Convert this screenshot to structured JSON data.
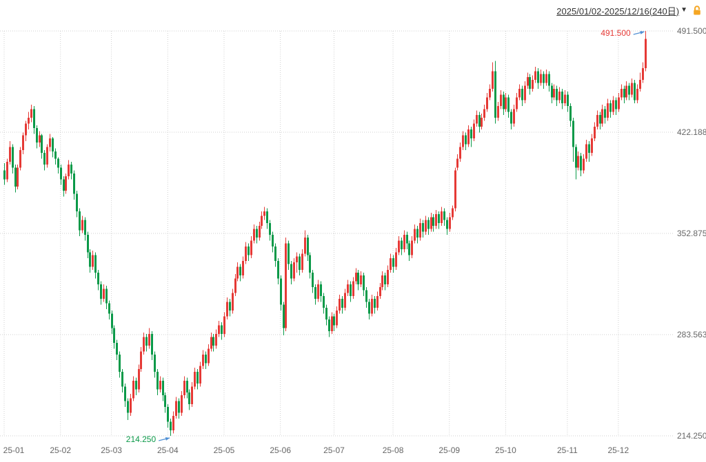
{
  "header": {
    "range_label": "2025/01/02-2025/12/16(240日)",
    "dropdown_icon": "▼"
  },
  "colors": {
    "up": "#e53935",
    "down": "#0a9948",
    "grid": "#cfcfcf",
    "axis_text": "#666666",
    "arrow": "#4f8fd4",
    "header_text": "#333333",
    "lock": "#f5a623",
    "background": "#ffffff"
  },
  "chart_data": {
    "type": "candlestick",
    "title": "",
    "date_range": "2025/01/02-2025/12/16",
    "period_days": 240,
    "grid": true,
    "legend": "none",
    "ylim": [
      214.25,
      491.5
    ],
    "y_ticks": [
      {
        "label": "491.500",
        "value": 491.5
      },
      {
        "label": "422.188",
        "value": 422.188
      },
      {
        "label": "352.875",
        "value": 352.875
      },
      {
        "label": "283.563",
        "value": 283.563
      },
      {
        "label": "214.250",
        "value": 214.25
      }
    ],
    "x_ticks": [
      {
        "label": "25-01",
        "day": 0
      },
      {
        "label": "25-02",
        "day": 21
      },
      {
        "label": "25-03",
        "day": 40
      },
      {
        "label": "25-04",
        "day": 61
      },
      {
        "label": "25-05",
        "day": 82
      },
      {
        "label": "25-06",
        "day": 103
      },
      {
        "label": "25-07",
        "day": 123
      },
      {
        "label": "25-08",
        "day": 145
      },
      {
        "label": "25-09",
        "day": 166
      },
      {
        "label": "25-10",
        "day": 187
      },
      {
        "label": "25-11",
        "day": 210
      },
      {
        "label": "25-12",
        "day": 229
      }
    ],
    "high_annotation": {
      "text": "491.500",
      "value": 491.5,
      "day": 239
    },
    "low_annotation": {
      "text": "214.250",
      "value": 214.25,
      "day": 62
    },
    "candles": [
      [
        396,
        401,
        386,
        390
      ],
      [
        390,
        404,
        388,
        402
      ],
      [
        402,
        416,
        400,
        412
      ],
      [
        412,
        414,
        394,
        398
      ],
      [
        398,
        400,
        381,
        385
      ],
      [
        385,
        400,
        383,
        398
      ],
      [
        398,
        412,
        396,
        410
      ],
      [
        410,
        422,
        407,
        420
      ],
      [
        420,
        430,
        416,
        428
      ],
      [
        428,
        436,
        424,
        432
      ],
      [
        432,
        441,
        429,
        438
      ],
      [
        438,
        440,
        421,
        425
      ],
      [
        425,
        427,
        411,
        415
      ],
      [
        415,
        423,
        412,
        420
      ],
      [
        420,
        421,
        404,
        408
      ],
      [
        408,
        410,
        396,
        400
      ],
      [
        400,
        414,
        398,
        412
      ],
      [
        412,
        421,
        409,
        418
      ],
      [
        418,
        419,
        405,
        409
      ],
      [
        409,
        411,
        400,
        404
      ],
      [
        404,
        405,
        394,
        398
      ],
      [
        398,
        400,
        386,
        390
      ],
      [
        390,
        392,
        378,
        382
      ],
      [
        382,
        394,
        380,
        392
      ],
      [
        392,
        403,
        390,
        400
      ],
      [
        400,
        402,
        390,
        394
      ],
      [
        394,
        396,
        376,
        380
      ],
      [
        380,
        382,
        364,
        368
      ],
      [
        368,
        370,
        351,
        355
      ],
      [
        355,
        365,
        353,
        362
      ],
      [
        362,
        364,
        348,
        352
      ],
      [
        352,
        354,
        336,
        340
      ],
      [
        340,
        342,
        326,
        330
      ],
      [
        330,
        341,
        328,
        338
      ],
      [
        338,
        340,
        322,
        326
      ],
      [
        326,
        328,
        314,
        318
      ],
      [
        318,
        320,
        304,
        308
      ],
      [
        308,
        318,
        306,
        315
      ],
      [
        315,
        317,
        301,
        305
      ],
      [
        305,
        307,
        294,
        298
      ],
      [
        298,
        300,
        284,
        288
      ],
      [
        288,
        290,
        274,
        278
      ],
      [
        278,
        280,
        266,
        270
      ],
      [
        270,
        272,
        254,
        258
      ],
      [
        258,
        260,
        244,
        248
      ],
      [
        248,
        250,
        234,
        238
      ],
      [
        238,
        240,
        225,
        230
      ],
      [
        230,
        243,
        228,
        240
      ],
      [
        240,
        255,
        238,
        252
      ],
      [
        252,
        254,
        242,
        246
      ],
      [
        246,
        263,
        244,
        260
      ],
      [
        260,
        275,
        258,
        272
      ],
      [
        272,
        285,
        270,
        282
      ],
      [
        282,
        284,
        272,
        276
      ],
      [
        276,
        288,
        274,
        284
      ],
      [
        284,
        286,
        266,
        270
      ],
      [
        270,
        272,
        254,
        258
      ],
      [
        258,
        260,
        242,
        246
      ],
      [
        246,
        255,
        244,
        252
      ],
      [
        252,
        254,
        238,
        242
      ],
      [
        242,
        244,
        230,
        234
      ],
      [
        234,
        236,
        220,
        224
      ],
      [
        224,
        226,
        214.25,
        218
      ],
      [
        218,
        231,
        216,
        228
      ],
      [
        228,
        241,
        226,
        238
      ],
      [
        238,
        240,
        226,
        230
      ],
      [
        230,
        245,
        228,
        242
      ],
      [
        242,
        255,
        240,
        252
      ],
      [
        252,
        254,
        240,
        244
      ],
      [
        244,
        246,
        232,
        236
      ],
      [
        236,
        251,
        234,
        248
      ],
      [
        248,
        261,
        246,
        258
      ],
      [
        258,
        260,
        246,
        250
      ],
      [
        250,
        265,
        248,
        262
      ],
      [
        262,
        273,
        260,
        270
      ],
      [
        270,
        272,
        260,
        264
      ],
      [
        264,
        277,
        262,
        274
      ],
      [
        274,
        285,
        272,
        282
      ],
      [
        282,
        284,
        272,
        276
      ],
      [
        276,
        287,
        274,
        284
      ],
      [
        284,
        293,
        282,
        290
      ],
      [
        290,
        292,
        280,
        284
      ],
      [
        284,
        299,
        282,
        296
      ],
      [
        296,
        309,
        294,
        306
      ],
      [
        306,
        308,
        296,
        300
      ],
      [
        300,
        315,
        298,
        312
      ],
      [
        312,
        325,
        310,
        322
      ],
      [
        322,
        333,
        320,
        330
      ],
      [
        330,
        332,
        320,
        324
      ],
      [
        324,
        337,
        322,
        334
      ],
      [
        334,
        347,
        332,
        344
      ],
      [
        344,
        346,
        334,
        338
      ],
      [
        338,
        351,
        336,
        348
      ],
      [
        348,
        359,
        346,
        356
      ],
      [
        356,
        358,
        346,
        350
      ],
      [
        350,
        361,
        348,
        358
      ],
      [
        358,
        368,
        356,
        365
      ],
      [
        365,
        371,
        362,
        368
      ],
      [
        368,
        370,
        356,
        360
      ],
      [
        360,
        362,
        348,
        352
      ],
      [
        352,
        354,
        340,
        344
      ],
      [
        344,
        346,
        330,
        334
      ],
      [
        334,
        336,
        318,
        322
      ],
      [
        322,
        324,
        300,
        304
      ],
      [
        304,
        306,
        283,
        288
      ],
      [
        288,
        350,
        286,
        346
      ],
      [
        346,
        348,
        328,
        332
      ],
      [
        332,
        334,
        318,
        322
      ],
      [
        322,
        336,
        320,
        333
      ],
      [
        333,
        340,
        326,
        337
      ],
      [
        337,
        339,
        324,
        328
      ],
      [
        328,
        342,
        326,
        339
      ],
      [
        339,
        355,
        337,
        350
      ],
      [
        350,
        352,
        334,
        338
      ],
      [
        338,
        340,
        322,
        326
      ],
      [
        326,
        328,
        312,
        316
      ],
      [
        316,
        318,
        304,
        308
      ],
      [
        308,
        321,
        306,
        318
      ],
      [
        318,
        320,
        306,
        310
      ],
      [
        310,
        312,
        298,
        302
      ],
      [
        302,
        304,
        290,
        294
      ],
      [
        294,
        296,
        282,
        286
      ],
      [
        286,
        299,
        284,
        296
      ],
      [
        296,
        298,
        286,
        290
      ],
      [
        290,
        303,
        288,
        300
      ],
      [
        300,
        311,
        298,
        308
      ],
      [
        308,
        310,
        298,
        302
      ],
      [
        302,
        315,
        300,
        312
      ],
      [
        312,
        321,
        310,
        318
      ],
      [
        318,
        320,
        306,
        310
      ],
      [
        310,
        323,
        308,
        320
      ],
      [
        320,
        329,
        318,
        326
      ],
      [
        326,
        328,
        314,
        318
      ],
      [
        318,
        327,
        316,
        324
      ],
      [
        324,
        326,
        310,
        314
      ],
      [
        314,
        316,
        302,
        306
      ],
      [
        306,
        308,
        294,
        298
      ],
      [
        298,
        311,
        296,
        308
      ],
      [
        308,
        310,
        298,
        302
      ],
      [
        302,
        313,
        300,
        310
      ],
      [
        310,
        319,
        308,
        316
      ],
      [
        316,
        327,
        314,
        324
      ],
      [
        324,
        326,
        314,
        318
      ],
      [
        318,
        331,
        316,
        328
      ],
      [
        328,
        339,
        326,
        336
      ],
      [
        336,
        338,
        326,
        330
      ],
      [
        330,
        343,
        328,
        340
      ],
      [
        340,
        351,
        338,
        348
      ],
      [
        348,
        350,
        338,
        342
      ],
      [
        342,
        355,
        340,
        352
      ],
      [
        352,
        354,
        342,
        346
      ],
      [
        346,
        348,
        334,
        338
      ],
      [
        338,
        351,
        336,
        348
      ],
      [
        348,
        359,
        346,
        356
      ],
      [
        356,
        358,
        346,
        350
      ],
      [
        350,
        363,
        348,
        360
      ],
      [
        360,
        362,
        350,
        354
      ],
      [
        354,
        365,
        352,
        362
      ],
      [
        362,
        364,
        352,
        356
      ],
      [
        356,
        367,
        354,
        364
      ],
      [
        364,
        366,
        354,
        358
      ],
      [
        358,
        369,
        356,
        366
      ],
      [
        366,
        368,
        356,
        360
      ],
      [
        360,
        371,
        358,
        368
      ],
      [
        368,
        370,
        358,
        362
      ],
      [
        362,
        364,
        352,
        356
      ],
      [
        356,
        367,
        354,
        364
      ],
      [
        364,
        372,
        362,
        370
      ],
      [
        370,
        398,
        368,
        396
      ],
      [
        398,
        407,
        396,
        404
      ],
      [
        404,
        415,
        402,
        412
      ],
      [
        412,
        423,
        410,
        420
      ],
      [
        420,
        422,
        410,
        414
      ],
      [
        414,
        427,
        412,
        424
      ],
      [
        424,
        426,
        412,
        418
      ],
      [
        418,
        431,
        416,
        428
      ],
      [
        428,
        437,
        426,
        434
      ],
      [
        434,
        436,
        422,
        426
      ],
      [
        426,
        435,
        424,
        432
      ],
      [
        432,
        441,
        430,
        438
      ],
      [
        438,
        449,
        436,
        446
      ],
      [
        446,
        455,
        444,
        452
      ],
      [
        452,
        470,
        450,
        464
      ],
      [
        464,
        471,
        428,
        432
      ],
      [
        432,
        443,
        430,
        440
      ],
      [
        440,
        451,
        438,
        448
      ],
      [
        448,
        450,
        434,
        438
      ],
      [
        438,
        449,
        436,
        446
      ],
      [
        446,
        448,
        432,
        436
      ],
      [
        436,
        438,
        424,
        428
      ],
      [
        428,
        441,
        426,
        438
      ],
      [
        438,
        449,
        436,
        446
      ],
      [
        446,
        455,
        444,
        452
      ],
      [
        452,
        454,
        440,
        444
      ],
      [
        444,
        457,
        442,
        454
      ],
      [
        454,
        463,
        452,
        460
      ],
      [
        460,
        462,
        448,
        452
      ],
      [
        452,
        461,
        450,
        458
      ],
      [
        458,
        467,
        456,
        464
      ],
      [
        464,
        466,
        452,
        456
      ],
      [
        456,
        465,
        454,
        462
      ],
      [
        462,
        464,
        452,
        456
      ],
      [
        456,
        465,
        454,
        462
      ],
      [
        462,
        464,
        450,
        454
      ],
      [
        454,
        456,
        442,
        446
      ],
      [
        446,
        455,
        444,
        452
      ],
      [
        452,
        454,
        440,
        444
      ],
      [
        444,
        453,
        442,
        450
      ],
      [
        450,
        452,
        438,
        442
      ],
      [
        442,
        451,
        440,
        448
      ],
      [
        448,
        450,
        436,
        440
      ],
      [
        440,
        442,
        426,
        430
      ],
      [
        430,
        432,
        402,
        412
      ],
      [
        412,
        414,
        390,
        398
      ],
      [
        398,
        409,
        396,
        406
      ],
      [
        406,
        408,
        392,
        396
      ],
      [
        396,
        407,
        394,
        404
      ],
      [
        404,
        417,
        402,
        414
      ],
      [
        414,
        416,
        402,
        408
      ],
      [
        408,
        421,
        406,
        418
      ],
      [
        418,
        429,
        416,
        426
      ],
      [
        426,
        437,
        424,
        434
      ],
      [
        434,
        436,
        424,
        428
      ],
      [
        428,
        441,
        426,
        438
      ],
      [
        438,
        440,
        428,
        432
      ],
      [
        432,
        445,
        430,
        442
      ],
      [
        442,
        444,
        432,
        436
      ],
      [
        436,
        447,
        434,
        444
      ],
      [
        444,
        446,
        434,
        438
      ],
      [
        438,
        449,
        436,
        446
      ],
      [
        446,
        455,
        444,
        452
      ],
      [
        452,
        454,
        442,
        446
      ],
      [
        446,
        457,
        444,
        454
      ],
      [
        454,
        456,
        444,
        448
      ],
      [
        448,
        459,
        446,
        456
      ],
      [
        456,
        458,
        442,
        444
      ],
      [
        444,
        455,
        442,
        452
      ],
      [
        452,
        463,
        450,
        458
      ],
      [
        458,
        470,
        456,
        466
      ],
      [
        466,
        491.5,
        464,
        486
      ]
    ]
  }
}
